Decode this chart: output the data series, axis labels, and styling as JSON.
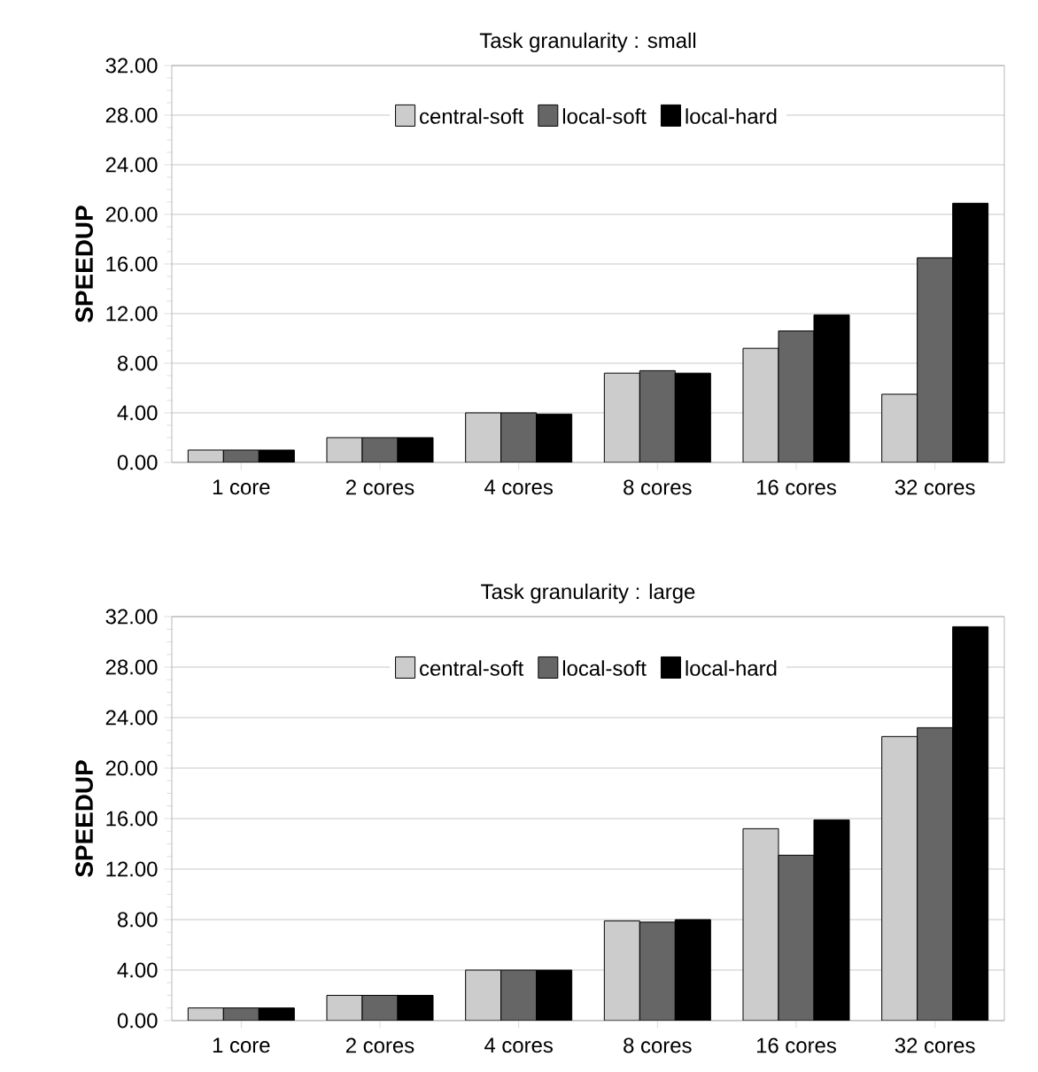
{
  "chart_data": [
    {
      "type": "bar",
      "title": "Task granularity : small",
      "ylabel": "SPEEDUP",
      "categories": [
        "1 core",
        "2 cores",
        "4 cores",
        "8 cores",
        "16 cores",
        "32 cores"
      ],
      "series": [
        {
          "name": "central-soft",
          "color": "#cccccc",
          "values": [
            1.0,
            2.0,
            4.0,
            7.2,
            9.2,
            5.5
          ]
        },
        {
          "name": "local-soft",
          "color": "#666666",
          "values": [
            1.0,
            2.0,
            4.0,
            7.4,
            10.6,
            16.5
          ]
        },
        {
          "name": "local-hard",
          "color": "#000000",
          "values": [
            1.0,
            2.0,
            3.9,
            7.2,
            11.9,
            20.9
          ]
        }
      ],
      "ylim": [
        0,
        32
      ],
      "yticks": [
        {
          "value": 0,
          "label": "0.00"
        },
        {
          "value": 4,
          "label": "4.00"
        },
        {
          "value": 8,
          "label": "8.00"
        },
        {
          "value": 12,
          "label": "12.00"
        },
        {
          "value": 16,
          "label": "16.00"
        },
        {
          "value": 20,
          "label": "20.00"
        },
        {
          "value": 24,
          "label": "24.00"
        },
        {
          "value": 28,
          "label": "28.00"
        },
        {
          "value": 32,
          "label": "32.00"
        }
      ],
      "grid": "y",
      "legend": "top"
    },
    {
      "type": "bar",
      "title": "Task granularity : large",
      "ylabel": "SPEEDUP",
      "categories": [
        "1 core",
        "2 cores",
        "4 cores",
        "8 cores",
        "16 cores",
        "32 cores"
      ],
      "series": [
        {
          "name": "central-soft",
          "color": "#cccccc",
          "values": [
            1.0,
            2.0,
            4.0,
            7.9,
            15.2,
            22.5
          ]
        },
        {
          "name": "local-soft",
          "color": "#666666",
          "values": [
            1.0,
            2.0,
            4.0,
            7.8,
            13.1,
            23.2
          ]
        },
        {
          "name": "local-hard",
          "color": "#000000",
          "values": [
            1.0,
            2.0,
            4.0,
            8.0,
            15.9,
            31.2
          ]
        }
      ],
      "ylim": [
        0,
        32
      ],
      "yticks": [
        {
          "value": 0,
          "label": "0.00"
        },
        {
          "value": 4,
          "label": "4.00"
        },
        {
          "value": 8,
          "label": "8.00"
        },
        {
          "value": 12,
          "label": "12.00"
        },
        {
          "value": 16,
          "label": "16.00"
        },
        {
          "value": 20,
          "label": "20.00"
        },
        {
          "value": 24,
          "label": "24.00"
        },
        {
          "value": 28,
          "label": "28.00"
        },
        {
          "value": 32,
          "label": "32.00"
        }
      ],
      "grid": "y",
      "legend": "top"
    }
  ]
}
